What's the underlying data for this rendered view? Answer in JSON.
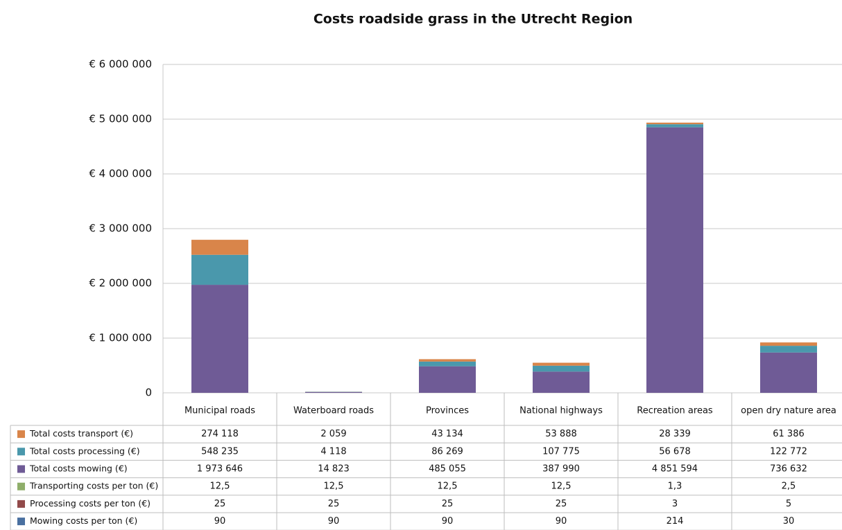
{
  "chart_data": {
    "type": "bar",
    "stacked": true,
    "title": "Costs roadside grass in the Utrecht Region",
    "categories": [
      "Municipal roads",
      "Waterboard roads",
      "Provinces",
      "National highways",
      "Recreation areas",
      "open dry nature area"
    ],
    "ylim": [
      0,
      6000000
    ],
    "yticks": [
      {
        "value": 0,
        "label": "0"
      },
      {
        "value": 1000000,
        "label": "€ 1 000 000"
      },
      {
        "value": 2000000,
        "label": "€ 2 000 000"
      },
      {
        "value": 3000000,
        "label": "€ 3 000 000"
      },
      {
        "value": 4000000,
        "label": "€ 4 000 000"
      },
      {
        "value": 5000000,
        "label": "€ 5 000 000"
      },
      {
        "value": 6000000,
        "label": "€ 6 000 000"
      }
    ],
    "grid": true,
    "series": [
      {
        "name": "Total costs transport (€)",
        "color": "#d9854a",
        "values": [
          274118,
          2059,
          43134,
          53888,
          28339,
          61386
        ],
        "value_labels": [
          "274 118",
          "2 059",
          "43 134",
          "53 888",
          "28 339",
          "61 386"
        ]
      },
      {
        "name": "Total costs processing (€)",
        "color": "#4a98ac",
        "values": [
          548235,
          4118,
          86269,
          107775,
          56678,
          122772
        ],
        "value_labels": [
          "548 235",
          "4 118",
          "86 269",
          "107 775",
          "56 678",
          "122 772"
        ]
      },
      {
        "name": "Total costs mowing (€)",
        "color": "#6f5b96",
        "values": [
          1973646,
          14823,
          485055,
          387990,
          4851594,
          736632
        ],
        "value_labels": [
          "1 973 646",
          "14 823",
          "485 055",
          "387 990",
          "4 851 594",
          "736 632"
        ]
      },
      {
        "name": "Transporting costs per ton (€)",
        "color": "#8fae6a",
        "values": [
          12.5,
          12.5,
          12.5,
          12.5,
          1.3,
          2.5
        ],
        "value_labels": [
          "12,5",
          "12,5",
          "12,5",
          "12,5",
          "1,3",
          "2,5"
        ]
      },
      {
        "name": "Processing costs per ton (€)",
        "color": "#924a4a",
        "values": [
          25,
          25,
          25,
          25,
          3,
          5
        ]
      },
      {
        "name": "Mowing costs per ton (€)",
        "color": "#4a70a0",
        "values": [
          90,
          90,
          90,
          90,
          214,
          30
        ]
      }
    ]
  }
}
